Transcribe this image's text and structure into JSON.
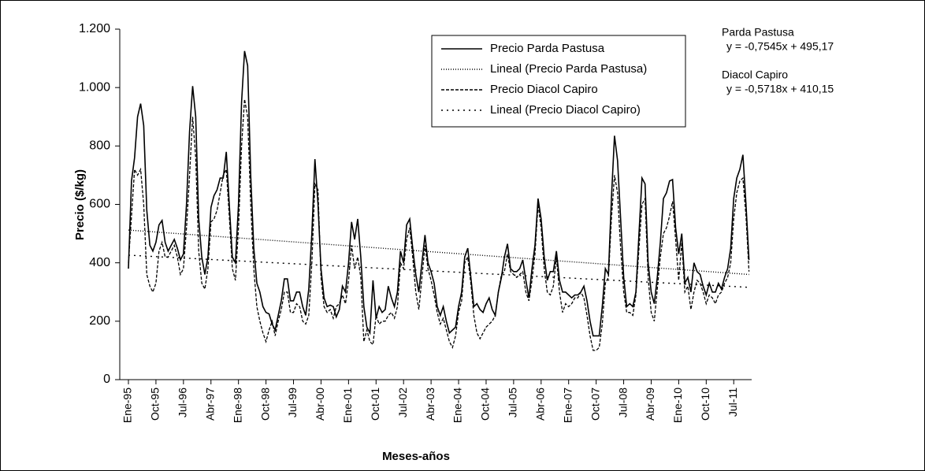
{
  "chart_data": {
    "type": "line",
    "y_label": "Precio ($/kg)",
    "x_label": "Meses-años",
    "annotations": [
      "Parda Pastusa",
      "y = -0,7545x + 495,17",
      "Diacol Capiro",
      "y = -0,5718x + 410,15"
    ],
    "ylim": [
      0,
      1200
    ],
    "yticks": [
      0,
      200,
      400,
      600,
      800,
      {
        "value": 1000,
        "label": "1.000"
      },
      {
        "value": 1200,
        "label": "1.200"
      }
    ],
    "legend": "top-right",
    "categories": [
      "Ene-95",
      null,
      null,
      null,
      null,
      null,
      null,
      null,
      null,
      "Oct-95",
      null,
      null,
      null,
      null,
      null,
      null,
      null,
      null,
      "Jul-96",
      null,
      null,
      null,
      null,
      null,
      null,
      null,
      null,
      "Abr-97",
      null,
      null,
      null,
      null,
      null,
      null,
      null,
      null,
      "Ene-98",
      null,
      null,
      null,
      null,
      null,
      null,
      null,
      null,
      "Oct-98",
      null,
      null,
      null,
      null,
      null,
      null,
      null,
      null,
      "Jul-99",
      null,
      null,
      null,
      null,
      null,
      null,
      null,
      null,
      "Abr-00",
      null,
      null,
      null,
      null,
      null,
      null,
      null,
      null,
      "Ene-01",
      null,
      null,
      null,
      null,
      null,
      null,
      null,
      null,
      "Oct-01",
      null,
      null,
      null,
      null,
      null,
      null,
      null,
      null,
      "Jul-02",
      null,
      null,
      null,
      null,
      null,
      null,
      null,
      null,
      "Abr-03",
      null,
      null,
      null,
      null,
      null,
      null,
      null,
      null,
      "Ene-04",
      null,
      null,
      null,
      null,
      null,
      null,
      null,
      null,
      "Oct-04",
      null,
      null,
      null,
      null,
      null,
      null,
      null,
      null,
      "Jul-05",
      null,
      null,
      null,
      null,
      null,
      null,
      null,
      null,
      "Abr-06",
      null,
      null,
      null,
      null,
      null,
      null,
      null,
      null,
      "Ene-07",
      null,
      null,
      null,
      null,
      null,
      null,
      null,
      null,
      "Oct-07",
      null,
      null,
      null,
      null,
      null,
      null,
      null,
      null,
      "Jul-08",
      null,
      null,
      null,
      null,
      null,
      null,
      null,
      null,
      "Abr-09",
      null,
      null,
      null,
      null,
      null,
      null,
      null,
      null,
      "Ene-10",
      null,
      null,
      null,
      null,
      null,
      null,
      null,
      null,
      "Oct-10",
      null,
      null,
      null,
      null,
      null,
      null,
      null,
      null,
      "Jul-11",
      null,
      null,
      null,
      null,
      null
    ],
    "series": [
      {
        "name": "Precio Parda Pastusa",
        "color": "#000000",
        "style": "solid",
        "values": [
          380,
          680,
          760,
          900,
          945,
          870,
          580,
          460,
          440,
          470,
          530,
          545,
          470,
          440,
          460,
          480,
          450,
          410,
          430,
          600,
          850,
          1005,
          900,
          550,
          420,
          360,
          420,
          590,
          630,
          650,
          690,
          690,
          780,
          600,
          420,
          400,
          600,
          950,
          1125,
          1075,
          700,
          450,
          330,
          300,
          250,
          230,
          225,
          190,
          170,
          220,
          270,
          345,
          345,
          270,
          270,
          300,
          300,
          250,
          220,
          310,
          500,
          755,
          600,
          380,
          280,
          250,
          255,
          250,
          215,
          240,
          320,
          300,
          400,
          540,
          480,
          550,
          420,
          250,
          180,
          160,
          340,
          210,
          250,
          230,
          240,
          320,
          280,
          250,
          300,
          440,
          400,
          530,
          550,
          450,
          360,
          300,
          400,
          495,
          400,
          370,
          330,
          250,
          220,
          250,
          200,
          160,
          170,
          180,
          250,
          300,
          420,
          450,
          350,
          250,
          260,
          240,
          230,
          260,
          280,
          240,
          220,
          300,
          350,
          420,
          465,
          380,
          370,
          370,
          380,
          410,
          340,
          280,
          380,
          460,
          620,
          550,
          420,
          340,
          370,
          370,
          440,
          340,
          300,
          300,
          290,
          280,
          290,
          290,
          300,
          320,
          270,
          200,
          150,
          150,
          150,
          250,
          380,
          360,
          620,
          835,
          750,
          550,
          350,
          250,
          260,
          250,
          300,
          500,
          690,
          670,
          400,
          300,
          260,
          350,
          470,
          620,
          640,
          680,
          685,
          520,
          430,
          500,
          330,
          350,
          300,
          400,
          370,
          360,
          320,
          290,
          330,
          300,
          300,
          330,
          310,
          350,
          380,
          450,
          620,
          690,
          720,
          770,
          600,
          410
        ]
      },
      {
        "name": "Lineal (Precio Parda Pastusa)",
        "color": "#000000",
        "style": "fine-dotted",
        "x": [
          0,
          203
        ],
        "values": [
          512,
          360
        ]
      },
      {
        "name": "Precio Diacol Capiro",
        "color": "#000000",
        "style": "dashed",
        "values": [
          400,
          560,
          720,
          700,
          720,
          600,
          360,
          320,
          300,
          330,
          440,
          470,
          420,
          420,
          440,
          460,
          420,
          360,
          380,
          520,
          700,
          900,
          760,
          440,
          330,
          310,
          380,
          540,
          550,
          580,
          640,
          700,
          720,
          560,
          380,
          340,
          520,
          800,
          960,
          900,
          600,
          380,
          250,
          200,
          160,
          130,
          170,
          200,
          150,
          200,
          240,
          300,
          300,
          230,
          230,
          260,
          250,
          200,
          190,
          220,
          400,
          670,
          650,
          350,
          250,
          230,
          240,
          210,
          250,
          260,
          290,
          260,
          340,
          460,
          380,
          420,
          350,
          130,
          170,
          130,
          120,
          220,
          190,
          200,
          200,
          220,
          230,
          210,
          250,
          400,
          380,
          480,
          520,
          420,
          300,
          240,
          350,
          460,
          380,
          340,
          290,
          230,
          190,
          210,
          170,
          130,
          110,
          150,
          230,
          270,
          400,
          420,
          330,
          220,
          160,
          140,
          160,
          180,
          190,
          200,
          220,
          300,
          360,
          370,
          430,
          370,
          360,
          350,
          360,
          370,
          300,
          270,
          340,
          430,
          600,
          520,
          380,
          300,
          290,
          320,
          420,
          300,
          230,
          260,
          250,
          260,
          280,
          280,
          300,
          280,
          220,
          150,
          100,
          100,
          110,
          190,
          330,
          350,
          550,
          700,
          640,
          450,
          300,
          230,
          230,
          220,
          290,
          450,
          600,
          620,
          350,
          230,
          200,
          310,
          420,
          500,
          520,
          560,
          610,
          480,
          340,
          470,
          300,
          320,
          240,
          300,
          340,
          330,
          300,
          260,
          290,
          280,
          260,
          290,
          300,
          330,
          350,
          400,
          550,
          640,
          680,
          690,
          560,
          370
        ]
      },
      {
        "name": "Lineal (Precio Diacol Capiro)",
        "color": "#000000",
        "style": "dotted",
        "x": [
          0,
          203
        ],
        "values": [
          426,
          316
        ]
      }
    ]
  }
}
